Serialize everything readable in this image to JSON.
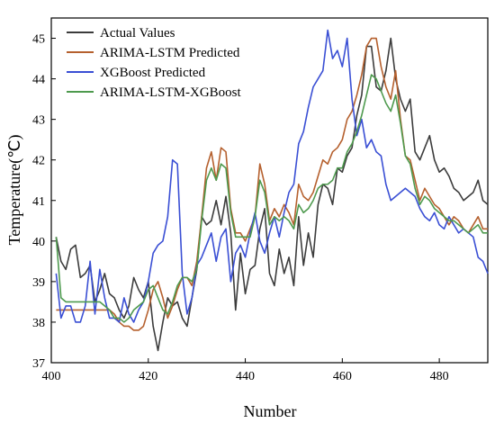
{
  "chart_data": {
    "type": "line",
    "title": "",
    "xlabel": "Number",
    "ylabel": "Temperature(℃)",
    "xlim": [
      400,
      490
    ],
    "ylim": [
      37,
      45.5
    ],
    "xticks": [
      400,
      420,
      440,
      460,
      480
    ],
    "yticks": [
      37,
      38,
      39,
      40,
      41,
      42,
      43,
      44,
      45
    ],
    "grid": false,
    "legend_position": "top-left",
    "x": [
      401,
      402,
      403,
      404,
      405,
      406,
      407,
      408,
      409,
      410,
      411,
      412,
      413,
      414,
      415,
      416,
      417,
      418,
      419,
      420,
      421,
      422,
      423,
      424,
      425,
      426,
      427,
      428,
      429,
      430,
      431,
      432,
      433,
      434,
      435,
      436,
      437,
      438,
      439,
      440,
      441,
      442,
      443,
      444,
      445,
      446,
      447,
      448,
      449,
      450,
      451,
      452,
      453,
      454,
      455,
      456,
      457,
      458,
      459,
      460,
      461,
      462,
      463,
      464,
      465,
      466,
      467,
      468,
      469,
      470,
      471,
      472,
      473,
      474,
      475,
      476,
      477,
      478,
      479,
      480,
      481,
      482,
      483,
      484,
      485,
      486,
      487,
      488,
      489,
      490
    ],
    "series": [
      {
        "name": "Actual Values",
        "color": "#3c3c3c",
        "values": [
          40.1,
          39.5,
          39.3,
          39.8,
          39.9,
          39.1,
          39.2,
          39.4,
          38.5,
          38.8,
          39.2,
          38.7,
          38.6,
          38.3,
          38.1,
          38.4,
          39.1,
          38.8,
          38.6,
          39.0,
          37.9,
          37.3,
          38.0,
          38.6,
          38.4,
          38.5,
          38.1,
          37.9,
          38.6,
          39.3,
          40.6,
          40.4,
          40.5,
          41.0,
          40.4,
          41.1,
          40.2,
          38.3,
          39.7,
          38.7,
          39.3,
          39.4,
          40.3,
          40.8,
          39.2,
          38.9,
          39.8,
          39.2,
          39.6,
          38.9,
          40.6,
          39.4,
          40.2,
          39.6,
          40.9,
          41.4,
          41.3,
          40.9,
          41.8,
          41.7,
          42.1,
          42.3,
          43.1,
          43.6,
          44.8,
          44.8,
          43.8,
          43.7,
          44.2,
          45.0,
          44.0,
          43.5,
          43.2,
          43.5,
          42.2,
          42.0,
          42.3,
          42.6,
          42.0,
          41.7,
          41.8,
          41.6,
          41.3,
          41.2,
          41.0,
          41.1,
          41.2,
          41.5,
          41.0,
          40.9
        ]
      },
      {
        "name": "ARIMA-LSTM Predicted",
        "color": "#b5602e",
        "values": [
          38.3,
          38.3,
          38.3,
          38.3,
          38.3,
          38.3,
          38.3,
          38.3,
          38.3,
          38.3,
          38.3,
          38.3,
          38.2,
          38.0,
          37.9,
          37.9,
          37.8,
          37.8,
          37.9,
          38.3,
          38.8,
          39.0,
          38.6,
          38.1,
          38.4,
          38.8,
          39.1,
          39.1,
          38.9,
          39.5,
          40.6,
          41.8,
          42.2,
          41.5,
          42.3,
          42.2,
          40.8,
          40.2,
          40.2,
          40.0,
          40.3,
          40.6,
          41.9,
          41.4,
          40.5,
          40.8,
          40.6,
          40.9,
          40.7,
          40.4,
          41.4,
          41.1,
          41.0,
          41.2,
          41.6,
          42.0,
          41.9,
          42.2,
          42.3,
          42.5,
          43.0,
          43.2,
          43.6,
          44.1,
          44.8,
          45.0,
          45.0,
          44.3,
          43.8,
          43.5,
          44.2,
          43.0,
          42.1,
          42.0,
          41.5,
          41.0,
          41.3,
          41.1,
          40.9,
          40.8,
          40.6,
          40.4,
          40.6,
          40.5,
          40.3,
          40.2,
          40.4,
          40.6,
          40.3,
          40.3
        ]
      },
      {
        "name": "XGBoost Predicted",
        "color": "#3a4fd4",
        "values": [
          39.2,
          38.1,
          38.4,
          38.4,
          38.0,
          38.0,
          38.4,
          39.5,
          38.2,
          39.3,
          38.6,
          38.1,
          38.1,
          38.0,
          38.6,
          38.2,
          38.0,
          38.3,
          38.5,
          39.0,
          39.7,
          39.9,
          40.0,
          40.6,
          42.0,
          41.9,
          39.2,
          38.2,
          38.6,
          39.4,
          39.6,
          39.9,
          40.2,
          39.5,
          40.1,
          40.3,
          39.0,
          39.7,
          39.9,
          39.6,
          40.2,
          40.7,
          40.0,
          39.7,
          40.2,
          40.6,
          40.1,
          40.7,
          41.2,
          41.4,
          42.4,
          42.7,
          43.3,
          43.8,
          44.0,
          44.2,
          45.2,
          44.5,
          44.7,
          44.3,
          45.0,
          43.5,
          42.6,
          43.0,
          42.3,
          42.5,
          42.2,
          42.1,
          41.4,
          41.0,
          41.1,
          41.2,
          41.3,
          41.2,
          41.1,
          40.8,
          40.6,
          40.5,
          40.7,
          40.4,
          40.3,
          40.6,
          40.4,
          40.2,
          40.3,
          40.2,
          40.1,
          39.6,
          39.5,
          39.2
        ]
      },
      {
        "name": "ARIMA-LSTM-XGBoost",
        "color": "#4e9a4e",
        "values": [
          40.1,
          38.6,
          38.5,
          38.5,
          38.5,
          38.5,
          38.5,
          38.5,
          38.5,
          38.5,
          38.4,
          38.3,
          38.1,
          38.1,
          38.0,
          38.1,
          38.3,
          38.4,
          38.5,
          38.8,
          38.9,
          38.6,
          38.3,
          38.2,
          38.5,
          38.9,
          39.1,
          39.1,
          39.0,
          39.3,
          40.5,
          41.5,
          41.8,
          41.5,
          41.9,
          41.8,
          40.7,
          40.1,
          40.1,
          40.1,
          40.1,
          40.6,
          41.5,
          41.2,
          40.4,
          40.6,
          40.5,
          40.6,
          40.5,
          40.3,
          40.9,
          40.7,
          40.8,
          41.0,
          41.3,
          41.4,
          41.4,
          41.5,
          41.8,
          41.8,
          42.2,
          42.4,
          42.7,
          43.1,
          43.6,
          44.1,
          44.0,
          43.7,
          43.4,
          43.2,
          43.6,
          42.9,
          42.1,
          41.9,
          41.3,
          40.9,
          41.1,
          41.0,
          40.8,
          40.7,
          40.6,
          40.5,
          40.5,
          40.4,
          40.3,
          40.2,
          40.3,
          40.4,
          40.2,
          40.2
        ]
      }
    ]
  }
}
